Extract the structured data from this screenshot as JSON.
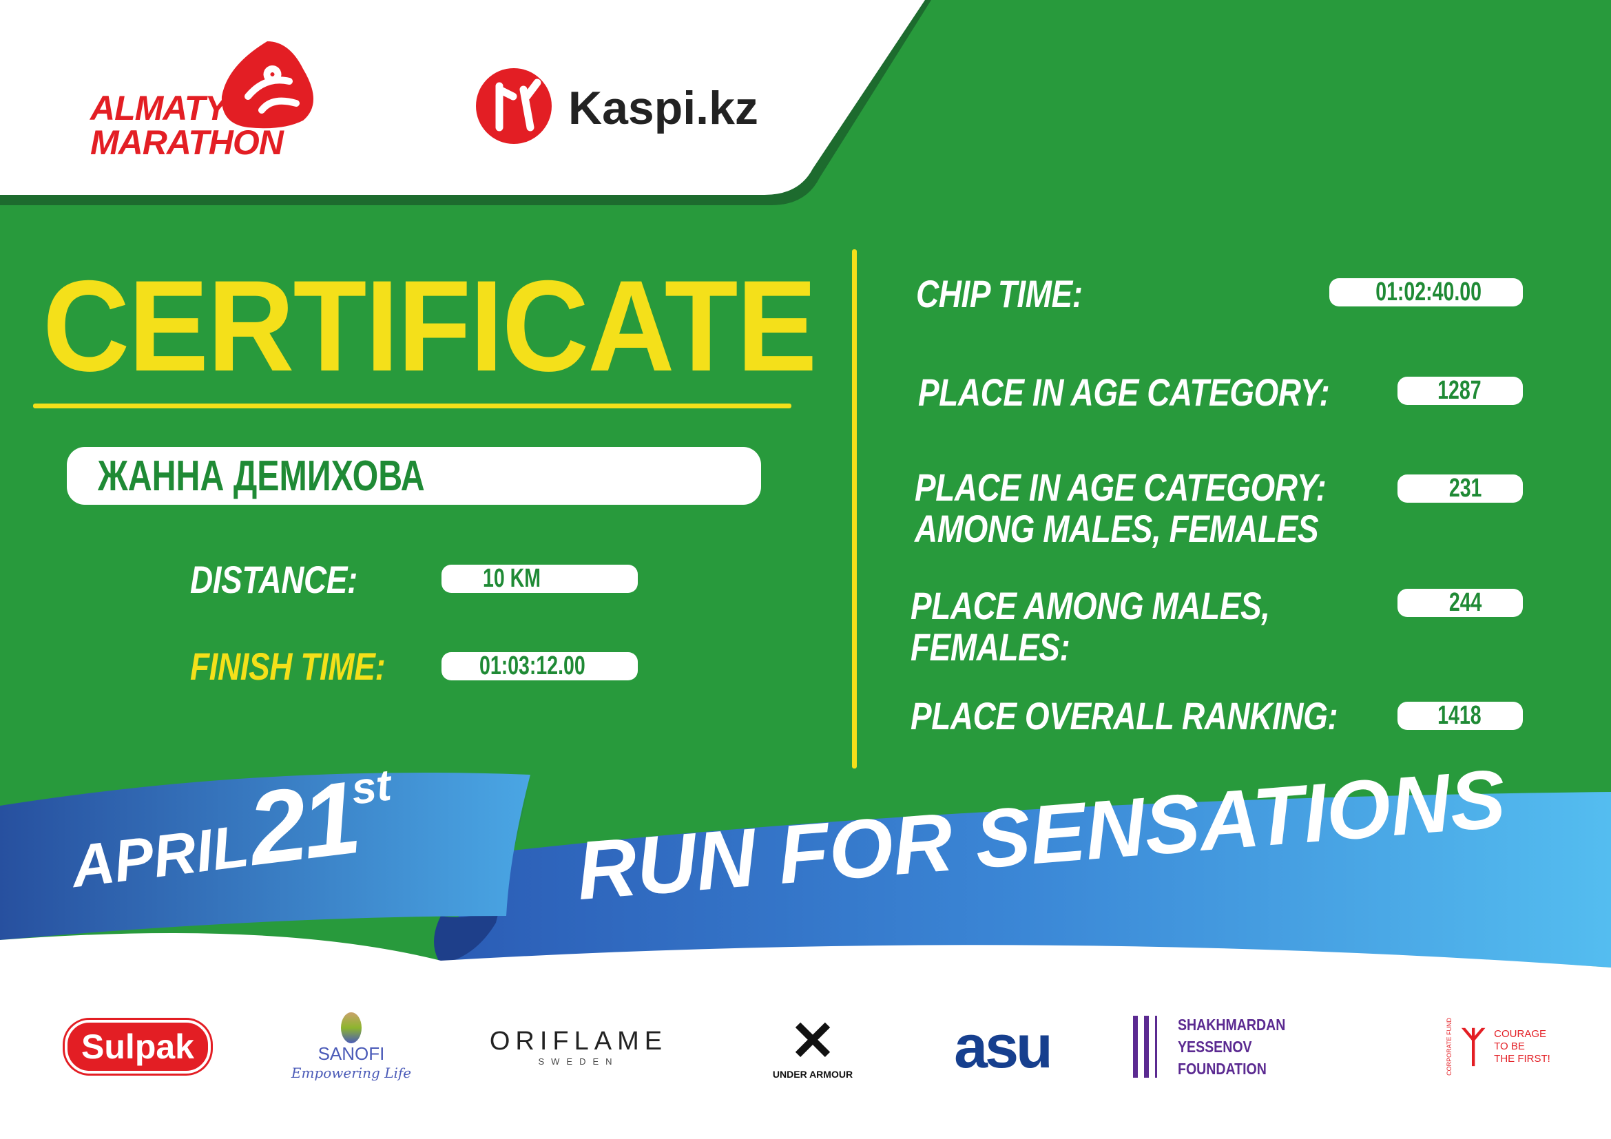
{
  "header": {
    "logo_line1": "ALMATY",
    "logo_line2": "MARATHON",
    "sponsor_main": "Kaspi.kz"
  },
  "certificate": {
    "title": "CERTIFICATE",
    "name": "ЖАННА ДЕМИХОВА",
    "distance_label": "DISTANCE:",
    "distance_value": "10 KM",
    "finish_label": "FINISH TIME:",
    "finish_value": "01:03:12.00"
  },
  "results": {
    "chip_label": "CHIP TIME:",
    "chip_value": "01:02:40.00",
    "age_label": "PLACE IN AGE CATEGORY:",
    "age_value": "1287",
    "age_gender_label_1": "PLACE IN AGE CATEGORY:",
    "age_gender_label_2": "AMONG MALES, FEMALES",
    "age_gender_value": "231",
    "gender_label_1": "PLACE AMONG MALES,",
    "gender_label_2": "FEMALES:",
    "gender_value": "244",
    "overall_label": "PLACE OVERALL RANKING:",
    "overall_value": "1418"
  },
  "ribbon": {
    "month": "APRIL",
    "day": "21",
    "suffix": "st",
    "slogan": "RUN FOR SENSATIONS"
  },
  "sponsors": {
    "sulpak": "Sulpak",
    "sanofi": "SANOFI",
    "sanofi_tagline": "Empowering Life",
    "oriflame": "ORIFLAME",
    "oriflame_sub": "SWEDEN",
    "under_armour": "UNDER ARMOUR",
    "asu": "asu",
    "yessenov_1": "SHAKHMARDAN YESSENOV",
    "yessenov_2": "FOUNDATION",
    "courage_arc": "CORPORATE FUND",
    "courage_1": "COURAGE",
    "courage_2": "TO BE",
    "courage_3": "THE FIRST!"
  },
  "colors": {
    "green": "#289a3c",
    "yellow": "#f4e01a",
    "red": "#e31e24",
    "blue_dark": "#2b5cb5",
    "blue_light": "#4fb6ec",
    "purple": "#5b2a91"
  }
}
